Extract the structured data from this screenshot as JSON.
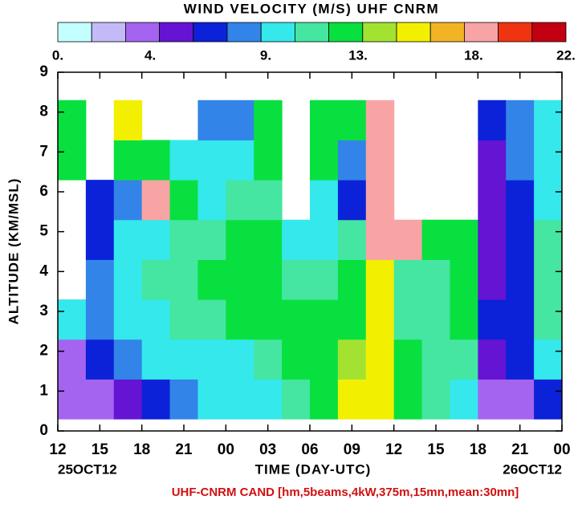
{
  "chart_data": {
    "type": "heatmap",
    "title": "WIND VELOCITY (M/S) UHF CNRM",
    "colorbar": {
      "colors": [
        "#c4ffff",
        "#c4baf8",
        "#a464f0",
        "#6414d2",
        "#0c22d8",
        "#3284e8",
        "#34e8ec",
        "#44e6a2",
        "#08e040",
        "#a4e232",
        "#f2f000",
        "#f2b424",
        "#f8a4a4",
        "#f03412",
        "#c20012"
      ],
      "lim": [
        0,
        22
      ],
      "ticks": [
        {
          "value": 0,
          "label": "0."
        },
        {
          "value": 4,
          "label": "4."
        },
        {
          "value": 9,
          "label": "9."
        },
        {
          "value": 13,
          "label": "13."
        },
        {
          "value": 18,
          "label": "18."
        },
        {
          "value": 22,
          "label": "22."
        }
      ]
    },
    "x_label": "TIME (DAY-UTC)",
    "y_label": "ALTITUDE (KM/MSL)",
    "date_labels": [
      "25OCT12",
      "26OCT12"
    ],
    "footer": "UHF-CNRM CAND [hm,5beams,4kW,375m,15mn,mean:30mn]",
    "xlim": [
      12,
      48
    ],
    "xticks": [
      12,
      15,
      18,
      21,
      {
        "value": 24,
        "label": "00"
      },
      {
        "value": 27,
        "label": "03"
      },
      {
        "value": 30,
        "label": "06"
      },
      {
        "value": 33,
        "label": "09"
      },
      {
        "value": 36,
        "label": "12"
      },
      {
        "value": 39,
        "label": "15"
      },
      {
        "value": 42,
        "label": "18"
      },
      {
        "value": 45,
        "label": "21"
      },
      {
        "value": 48,
        "label": "00"
      }
    ],
    "ylim": [
      0,
      9
    ],
    "yticks": [
      0,
      1,
      2,
      3,
      4,
      5,
      6,
      7,
      8,
      9
    ],
    "xbins": [
      12,
      14,
      16,
      18,
      20,
      22,
      24,
      26,
      28,
      30,
      32,
      34,
      36,
      38,
      40,
      42,
      44,
      46,
      48
    ],
    "ybins": [
      0.3,
      1.3,
      2.3,
      3.3,
      4.3,
      5.3,
      6.3,
      7.3,
      8.3
    ],
    "z": [
      [
        3,
        4,
        5,
        7,
        8,
        9,
        9,
        10,
        11,
        13,
        15,
        16,
        12,
        11,
        10,
        4,
        4,
        6
      ],
      [
        4,
        6,
        8,
        9,
        10,
        10,
        10,
        11,
        12,
        13,
        14,
        15,
        12,
        11,
        11,
        5,
        6,
        10
      ],
      [
        10,
        8,
        9,
        10,
        11,
        11,
        12,
        12,
        13,
        12,
        12,
        16,
        11,
        11,
        12,
        6,
        7,
        11
      ],
      [
        null,
        8,
        9,
        11,
        11,
        12,
        12,
        13,
        11,
        11,
        12,
        15,
        11,
        11,
        12,
        5,
        7,
        11
      ],
      [
        null,
        7,
        9,
        10,
        11,
        11,
        12,
        12,
        9,
        9,
        11,
        19,
        18,
        12,
        12,
        5,
        7,
        11
      ],
      [
        null,
        7,
        8,
        19,
        12,
        10,
        11,
        11,
        null,
        9,
        7,
        18,
        null,
        null,
        null,
        5,
        7,
        10
      ],
      [
        12,
        null,
        12,
        12,
        10,
        9,
        9,
        12,
        null,
        12,
        8,
        19,
        null,
        null,
        null,
        5,
        8,
        10
      ],
      [
        13,
        null,
        15,
        null,
        null,
        8,
        8,
        12,
        null,
        12,
        12,
        19,
        null,
        null,
        null,
        6,
        8,
        9
      ]
    ]
  }
}
